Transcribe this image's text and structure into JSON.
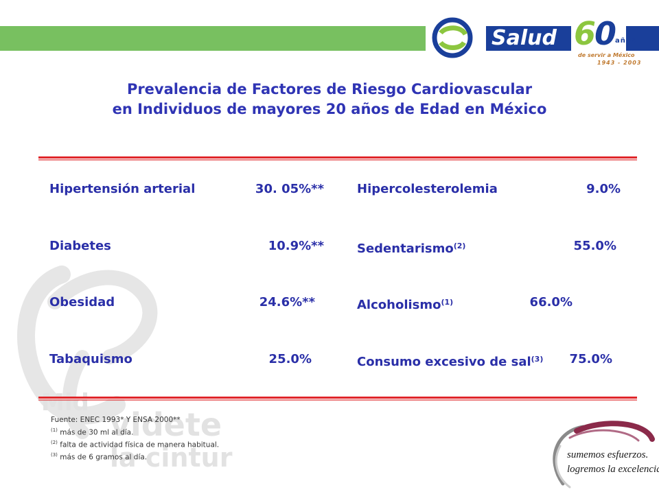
{
  "logo": {
    "brand": "Salud",
    "anniversary": "6",
    "anniversary_ring": "0",
    "anos": "años",
    "tagline": "de servir a México",
    "years": "1943 - 2003"
  },
  "title": {
    "line1": "Prevalencia de Factores de Riesgo Cardiovascular",
    "line2": "en Individuos de mayores 20 años de Edad en México"
  },
  "factors_left": [
    {
      "label": "Hipertensión arterial",
      "sup": "",
      "value": "30. 05%**"
    },
    {
      "label": "Diabetes",
      "sup": "",
      "value": "10.9%**"
    },
    {
      "label": "Obesidad",
      "sup": "",
      "value": "24.6%**"
    },
    {
      "label": "Tabaquismo",
      "sup": "",
      "value": "25.0%"
    }
  ],
  "factors_right": [
    {
      "label": "Hipercolesterolemia",
      "sup": "",
      "value": "9.0%"
    },
    {
      "label": "Sedentarismo",
      "sup": "(2)",
      "value": "55.0%"
    },
    {
      "label": "Alcoholismo",
      "sup": "(1)",
      "value": "66.0%"
    },
    {
      "label": "Consumo excesivo de sal",
      "sup": "(3)",
      "value": "75.0%"
    }
  ],
  "footnotes": {
    "source": "Fuente: ENEC 1993* Y ENSA 2000**",
    "n1_mark": "(1)",
    "n1": " más de 30 ml al día.",
    "n2_mark": "(2)",
    "n2": " falta de actividad física de manera habitual.",
    "n3_mark": "(3)",
    "n3": " más de 6 gramos al día."
  },
  "watermark": {
    "line1": "Mid",
    "line2": "videte",
    "line3": "la cintura"
  },
  "slogan": {
    "line1": "sumemos esfuerzos.",
    "line2": "logremos la excelencia..."
  },
  "colors": {
    "title": "#2f34b4",
    "text": "#2a2fa8",
    "rule": "#e0262a",
    "band": "#78c060",
    "logo_blue": "#1a3f9a"
  }
}
